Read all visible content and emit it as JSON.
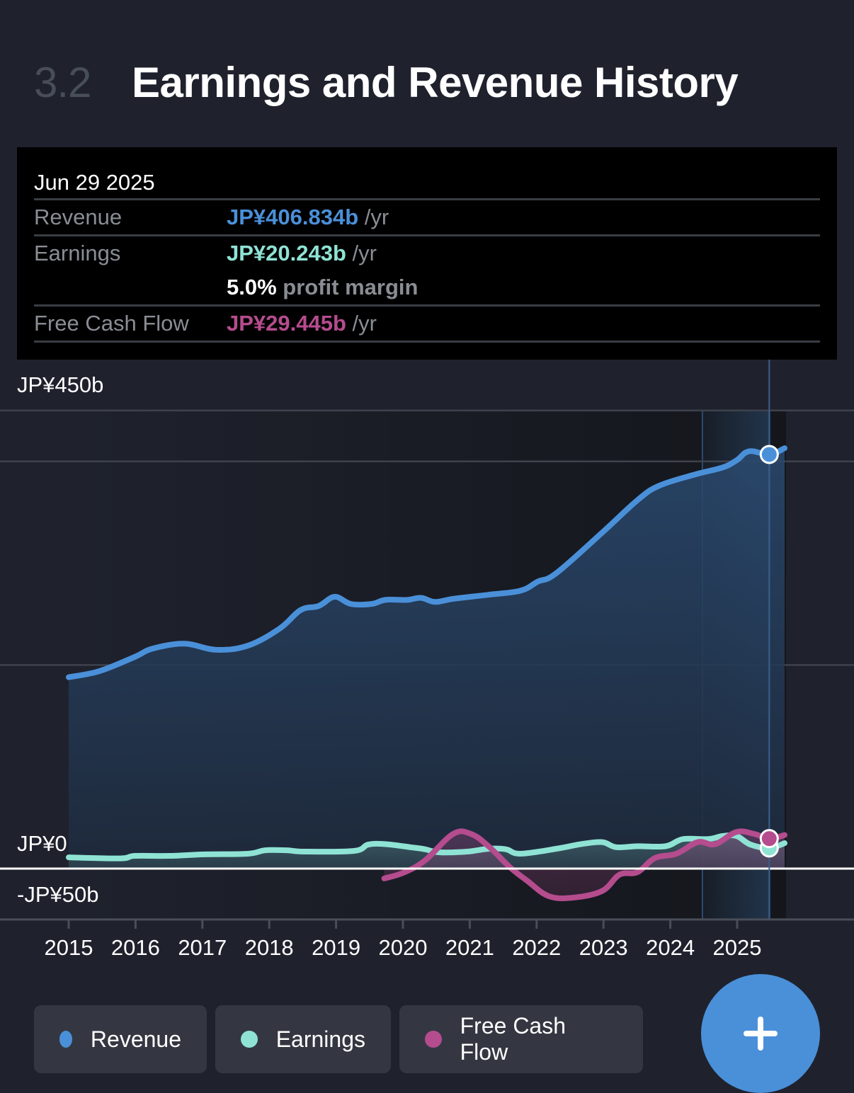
{
  "header": {
    "section_number": "3.2",
    "title": "Earnings and Revenue History"
  },
  "tooltip": {
    "date": "Jun 29 2025",
    "rows": {
      "revenue": {
        "label": "Revenue",
        "value": "JP¥406.834b",
        "unit": "/yr"
      },
      "earnings": {
        "label": "Earnings",
        "value": "JP¥20.243b",
        "unit": "/yr",
        "margin_value": "5.0%",
        "margin_label": "profit margin"
      },
      "fcf": {
        "label": "Free Cash Flow",
        "value": "JP¥29.445b",
        "unit": "/yr"
      }
    }
  },
  "legend": [
    {
      "label": "Revenue",
      "color": "#4a90d9",
      "icon": "revenue-dot-icon"
    },
    {
      "label": "Earnings",
      "color": "#8fe3d4",
      "icon": "earnings-dot-icon"
    },
    {
      "label": "Free Cash Flow",
      "color": "#b54c8e",
      "icon": "fcf-dot-icon"
    }
  ],
  "fab": {
    "icon": "plus-icon"
  },
  "chart_data": {
    "type": "area",
    "title": "Earnings and Revenue History",
    "xlabel": "",
    "ylabel": "",
    "xlim": [
      2014.95,
      2025.71
    ],
    "ylim": [
      -50,
      450
    ],
    "y_tick_labels": [
      {
        "value": 450,
        "label": "JP¥450b"
      },
      {
        "value": 0,
        "label": "JP¥0"
      },
      {
        "value": -50,
        "label": "-JP¥50b"
      }
    ],
    "gridlines": [
      450,
      400,
      200,
      -50
    ],
    "x_ticks": [
      2015,
      2016,
      2017,
      2018,
      2019,
      2020,
      2021,
      2022,
      2023,
      2024,
      2025
    ],
    "x_tick_labels": [
      "2015",
      "2016",
      "2017",
      "2018",
      "2019",
      "2020",
      "2021",
      "2022",
      "2023",
      "2024",
      "2025"
    ],
    "highlight_range": [
      2024.48,
      2025.5
    ],
    "cursor_x": 2025.48,
    "grid": true,
    "legend_position": "bottom",
    "series": [
      {
        "name": "Revenue",
        "color": "#4a90d9",
        "x": [
          2015.0,
          2015.46,
          2015.99,
          2016.25,
          2016.73,
          2017.2,
          2017.68,
          2018.16,
          2018.47,
          2018.74,
          2018.98,
          2019.22,
          2019.53,
          2019.74,
          2020.06,
          2020.27,
          2020.48,
          2020.75,
          2021.28,
          2021.76,
          2022.02,
          2022.29,
          2022.98,
          2023.51,
          2023.83,
          2024.36,
          2024.78,
          2024.99,
          2025.18,
          2025.48,
          2025.71
        ],
        "values": [
          188,
          194,
          208,
          216,
          221,
          215,
          219,
          236,
          254,
          258,
          267,
          260,
          260,
          264,
          264,
          266,
          262,
          265,
          269,
          273,
          282,
          290,
          330,
          362,
          376,
          387,
          394,
          401,
          410,
          406.834,
          413
        ]
      },
      {
        "name": "Earnings",
        "color": "#8fe3d4",
        "x": [
          2015.0,
          2015.77,
          2015.99,
          2016.51,
          2017.04,
          2017.68,
          2017.94,
          2018.26,
          2018.53,
          2019.27,
          2019.48,
          2019.74,
          2020.11,
          2020.33,
          2020.54,
          2020.96,
          2021.28,
          2021.54,
          2021.76,
          2022.34,
          2022.66,
          2022.98,
          2023.19,
          2023.51,
          2023.93,
          2024.19,
          2024.57,
          2024.78,
          2024.99,
          2025.2,
          2025.48,
          2025.71
        ],
        "values": [
          11,
          10,
          12.5,
          12.5,
          14,
          14.6,
          18,
          18,
          16.7,
          17.4,
          23.6,
          24,
          21,
          19,
          16,
          16.7,
          19.5,
          19,
          14.6,
          20,
          24,
          26,
          21,
          22,
          22,
          29,
          29,
          32,
          32,
          23.6,
          20.243,
          25
        ]
      },
      {
        "name": "Free Cash Flow",
        "color": "#b54c8e",
        "x": [
          2019.72,
          2020.01,
          2020.33,
          2020.75,
          2021.02,
          2021.28,
          2021.6,
          2021.86,
          2022.18,
          2022.55,
          2022.98,
          2023.24,
          2023.51,
          2023.77,
          2024.09,
          2024.41,
          2024.67,
          2024.99,
          2025.26,
          2025.48,
          2025.71
        ],
        "values": [
          -9.7,
          -4,
          8,
          34,
          34,
          22,
          1.4,
          -12,
          -27,
          -28.5,
          -22,
          -6,
          -3.5,
          10.4,
          14.6,
          26,
          24,
          36,
          34,
          29.445,
          33
        ]
      }
    ]
  }
}
